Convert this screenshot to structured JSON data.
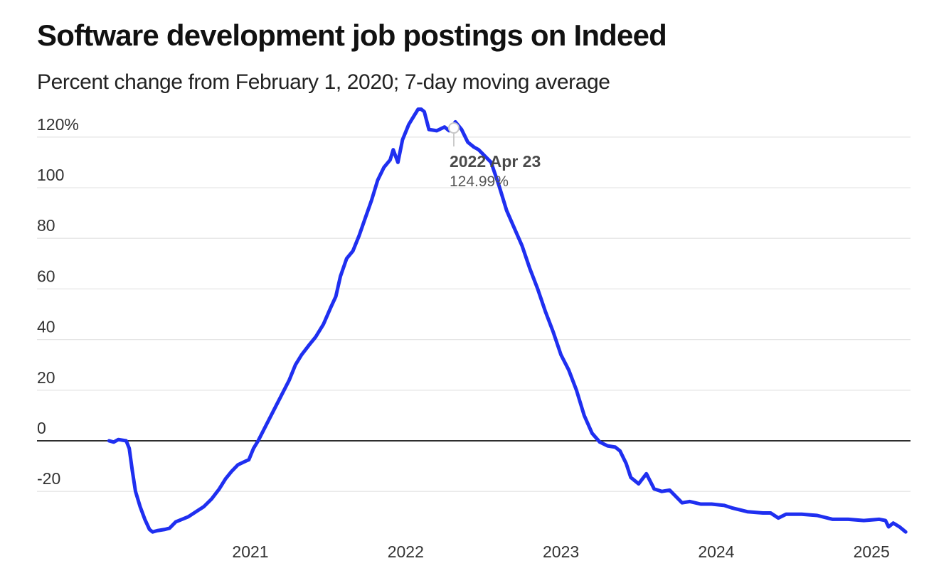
{
  "title": "Software development job postings on Indeed",
  "subtitle": "Percent change from February 1, 2020; 7-day moving average",
  "colors": {
    "line": "#1f2ff0",
    "zero_line": "#111111",
    "grid": "#e6e6e6"
  },
  "tooltip": {
    "date": "2022 Apr 23",
    "value": "124.99%",
    "x_year": 2022.31,
    "y": 124.99
  },
  "chart_data": {
    "type": "line",
    "title": "Software development job postings on Indeed",
    "subtitle": "Percent change from February 1, 2020; 7-day moving average",
    "xlabel": "",
    "ylabel": "",
    "xlim": [
      2020.04,
      2025.27
    ],
    "ylim": [
      -38,
      132
    ],
    "y_ticks": [
      {
        "value": 120,
        "label": "120%"
      },
      {
        "value": 100,
        "label": "100"
      },
      {
        "value": 80,
        "label": "80"
      },
      {
        "value": 60,
        "label": "60"
      },
      {
        "value": 40,
        "label": "40"
      },
      {
        "value": 20,
        "label": "20"
      },
      {
        "value": 0,
        "label": "0"
      },
      {
        "value": -20,
        "label": "-20"
      }
    ],
    "x_ticks": [
      {
        "value": 2021,
        "label": "2021"
      },
      {
        "value": 2022,
        "label": "2022"
      },
      {
        "value": 2023,
        "label": "2023"
      },
      {
        "value": 2024,
        "label": "2024"
      },
      {
        "value": 2025,
        "label": "2025"
      }
    ],
    "grid": true,
    "series": [
      {
        "color": "#1f2ff0",
        "points": [
          [
            2020.09,
            0
          ],
          [
            2020.12,
            -0.5
          ],
          [
            2020.15,
            0.5
          ],
          [
            2020.2,
            0
          ],
          [
            2020.22,
            -3
          ],
          [
            2020.24,
            -12
          ],
          [
            2020.26,
            -20
          ],
          [
            2020.29,
            -26
          ],
          [
            2020.32,
            -31
          ],
          [
            2020.35,
            -35
          ],
          [
            2020.37,
            -36
          ],
          [
            2020.4,
            -35.5
          ],
          [
            2020.45,
            -35
          ],
          [
            2020.48,
            -34.5
          ],
          [
            2020.52,
            -32
          ],
          [
            2020.56,
            -31
          ],
          [
            2020.6,
            -30
          ],
          [
            2020.65,
            -28
          ],
          [
            2020.7,
            -26
          ],
          [
            2020.75,
            -23
          ],
          [
            2020.8,
            -19
          ],
          [
            2020.84,
            -15
          ],
          [
            2020.88,
            -12
          ],
          [
            2020.92,
            -9.5
          ],
          [
            2020.97,
            -8
          ],
          [
            2020.99,
            -7.5
          ],
          [
            2021.02,
            -3
          ],
          [
            2021.05,
            0
          ],
          [
            2021.1,
            6
          ],
          [
            2021.15,
            12
          ],
          [
            2021.2,
            18
          ],
          [
            2021.25,
            24
          ],
          [
            2021.29,
            30
          ],
          [
            2021.33,
            34
          ],
          [
            2021.38,
            38
          ],
          [
            2021.42,
            41
          ],
          [
            2021.47,
            46
          ],
          [
            2021.52,
            53
          ],
          [
            2021.55,
            57
          ],
          [
            2021.58,
            65
          ],
          [
            2021.62,
            72
          ],
          [
            2021.66,
            75
          ],
          [
            2021.7,
            81
          ],
          [
            2021.74,
            88
          ],
          [
            2021.78,
            95
          ],
          [
            2021.82,
            103
          ],
          [
            2021.86,
            108
          ],
          [
            2021.9,
            111
          ],
          [
            2021.92,
            115
          ],
          [
            2021.95,
            110
          ],
          [
            2021.98,
            119
          ],
          [
            2022.02,
            125
          ],
          [
            2022.05,
            128
          ],
          [
            2022.08,
            131
          ],
          [
            2022.1,
            131
          ],
          [
            2022.12,
            130
          ],
          [
            2022.15,
            123
          ],
          [
            2022.2,
            122.5
          ],
          [
            2022.25,
            124
          ],
          [
            2022.28,
            122.5
          ],
          [
            2022.32,
            126
          ],
          [
            2022.36,
            123
          ],
          [
            2022.4,
            118
          ],
          [
            2022.44,
            116
          ],
          [
            2022.47,
            115
          ],
          [
            2022.55,
            110
          ],
          [
            2022.6,
            101
          ],
          [
            2022.65,
            91
          ],
          [
            2022.7,
            84
          ],
          [
            2022.75,
            77
          ],
          [
            2022.8,
            68
          ],
          [
            2022.85,
            60
          ],
          [
            2022.9,
            51
          ],
          [
            2022.95,
            43
          ],
          [
            2023.0,
            34
          ],
          [
            2023.05,
            28
          ],
          [
            2023.1,
            20
          ],
          [
            2023.15,
            10
          ],
          [
            2023.2,
            3
          ],
          [
            2023.25,
            -0.5
          ],
          [
            2023.3,
            -2
          ],
          [
            2023.35,
            -2.5
          ],
          [
            2023.38,
            -4
          ],
          [
            2023.42,
            -9
          ],
          [
            2023.45,
            -14.5
          ],
          [
            2023.5,
            -17
          ],
          [
            2023.55,
            -13
          ],
          [
            2023.6,
            -19
          ],
          [
            2023.65,
            -20
          ],
          [
            2023.7,
            -19.5
          ],
          [
            2023.74,
            -22
          ],
          [
            2023.78,
            -24.5
          ],
          [
            2023.83,
            -24
          ],
          [
            2023.9,
            -25
          ],
          [
            2023.97,
            -25
          ],
          [
            2024.05,
            -25.5
          ],
          [
            2024.1,
            -26.5
          ],
          [
            2024.2,
            -28
          ],
          [
            2024.3,
            -28.5
          ],
          [
            2024.35,
            -28.5
          ],
          [
            2024.4,
            -30.5
          ],
          [
            2024.45,
            -29
          ],
          [
            2024.55,
            -29
          ],
          [
            2024.65,
            -29.5
          ],
          [
            2024.75,
            -31
          ],
          [
            2024.85,
            -31
          ],
          [
            2024.95,
            -31.5
          ],
          [
            2025.05,
            -31
          ],
          [
            2025.09,
            -31.5
          ],
          [
            2025.11,
            -34
          ],
          [
            2025.14,
            -32.5
          ],
          [
            2025.18,
            -34
          ],
          [
            2025.22,
            -36
          ]
        ]
      }
    ]
  }
}
